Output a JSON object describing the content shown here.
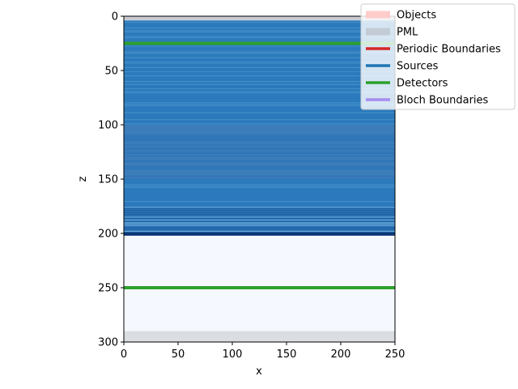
{
  "chart_data": {
    "type": "heatmap",
    "xlabel": "x",
    "ylabel": "z",
    "xlim": [
      0,
      250
    ],
    "ylim": [
      300,
      0
    ],
    "x_ticks": [
      "0",
      "50",
      "100",
      "150",
      "200",
      "250"
    ],
    "y_ticks": [
      "0",
      "50",
      "100",
      "150",
      "200",
      "250",
      "300"
    ],
    "x_tick_values": [
      0,
      50,
      100,
      150,
      200,
      250
    ],
    "y_tick_values": [
      0,
      50,
      100,
      150,
      200,
      250,
      300
    ],
    "regions": [
      {
        "name": "PML",
        "z_from": 0,
        "z_to": 4,
        "color": "#c8ccd2"
      },
      {
        "name": "layered-field",
        "z_from": 4,
        "z_to": 202,
        "color": "#2e7cbe"
      },
      {
        "name": "uniform",
        "z_from": 202,
        "z_to": 290,
        "color": "#f5f9ff"
      },
      {
        "name": "PML",
        "z_from": 290,
        "z_to": 300,
        "color": "#dadde1"
      }
    ],
    "detectors_z": [
      25,
      250
    ],
    "legend_placement": "top-right",
    "legend": [
      {
        "label": "Objects",
        "color": "#ffcccc",
        "kind": "thick"
      },
      {
        "label": "PML",
        "color": "#c3cbd4",
        "kind": "thick"
      },
      {
        "label": "Periodic Boundaries",
        "color": "#d62728",
        "kind": "line"
      },
      {
        "label": "Sources",
        "color": "#1f77b4",
        "kind": "line"
      },
      {
        "label": "Detectors",
        "color": "#2ca02c",
        "kind": "line"
      },
      {
        "label": "Bloch Boundaries",
        "color": "#a68cf0",
        "kind": "line"
      }
    ]
  }
}
